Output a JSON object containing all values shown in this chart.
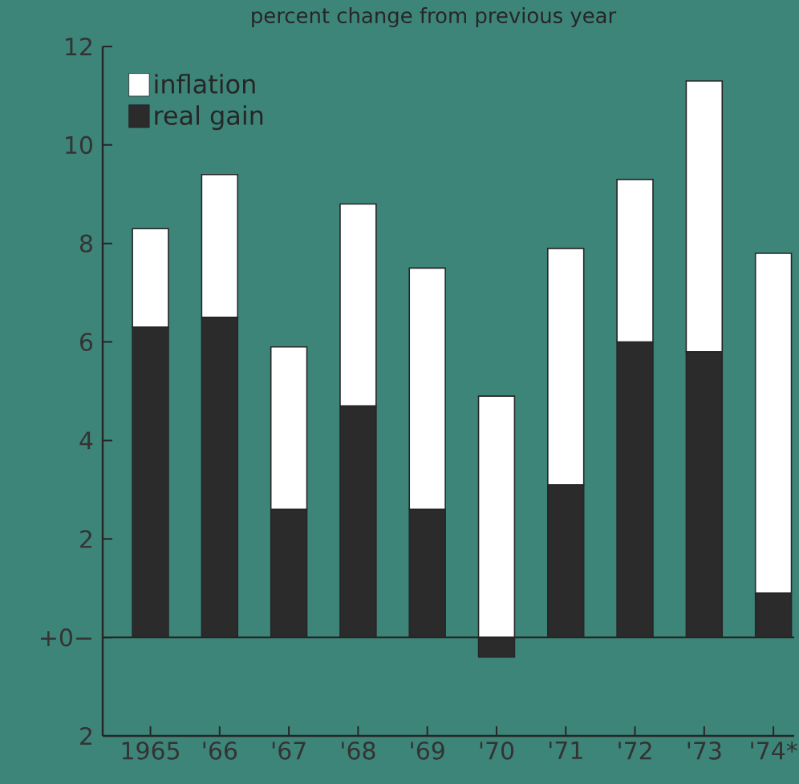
{
  "chart_data": {
    "type": "bar",
    "title": "percent change from previous year",
    "stacked": true,
    "legend": "top left",
    "categories": [
      "1965",
      "'66",
      "'67",
      "'68",
      "'69",
      "'70",
      "'71",
      "'72",
      "'73",
      "'74*"
    ],
    "series": [
      {
        "name": "real gain",
        "color": "#2b2b2b",
        "values": [
          6.3,
          6.5,
          2.6,
          4.7,
          2.6,
          -0.4,
          3.1,
          6.0,
          5.8,
          0.9
        ]
      },
      {
        "name": "inflation",
        "color": "#ffffff",
        "values": [
          2.0,
          2.9,
          3.3,
          4.1,
          4.9,
          4.9,
          4.8,
          3.3,
          5.5,
          6.9
        ]
      }
    ],
    "ylim": [
      -2,
      12
    ],
    "yticks": [
      {
        "value": -2,
        "label": "2"
      },
      {
        "value": 0,
        "label": "+0−"
      },
      2,
      4,
      6,
      8,
      10,
      12
    ]
  }
}
